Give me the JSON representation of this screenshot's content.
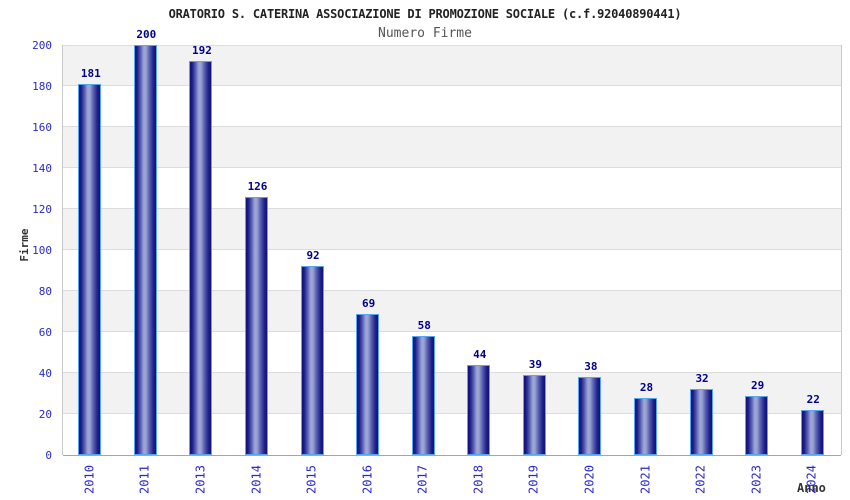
{
  "chart_data": {
    "type": "bar",
    "title": "ORATORIO S. CATERINA ASSOCIAZIONE DI PROMOZIONE SOCIALE (c.f.92040890441)",
    "subtitle": "Numero Firme",
    "xlabel": "Anno",
    "ylabel": "Firme",
    "categories": [
      "2010",
      "2011",
      "2013",
      "2014",
      "2015",
      "2016",
      "2017",
      "2018",
      "2019",
      "2020",
      "2021",
      "2022",
      "2023",
      "2024"
    ],
    "values": [
      181,
      200,
      192,
      126,
      92,
      69,
      58,
      44,
      39,
      38,
      28,
      32,
      29,
      22
    ],
    "ylim": [
      0,
      200
    ],
    "ytick_step": 20,
    "yticks": [
      0,
      20,
      40,
      60,
      80,
      100,
      120,
      140,
      160,
      180,
      200
    ],
    "grid": true,
    "legend_position": "none",
    "bar_value_labels_shown": true,
    "colors": {
      "title_color": "#222222",
      "subtitle_color": "#555555",
      "axis_label_color": "#333333",
      "tick_label": "#2929cc",
      "value_label": "#00008b",
      "bar_dark": "#121277",
      "bar_light": "#9ea6d8",
      "bar_border": "#55a5f5",
      "band_gray": "#f2f2f2",
      "band_white": "#ffffff",
      "grid_line": "#dcdcdc"
    }
  }
}
